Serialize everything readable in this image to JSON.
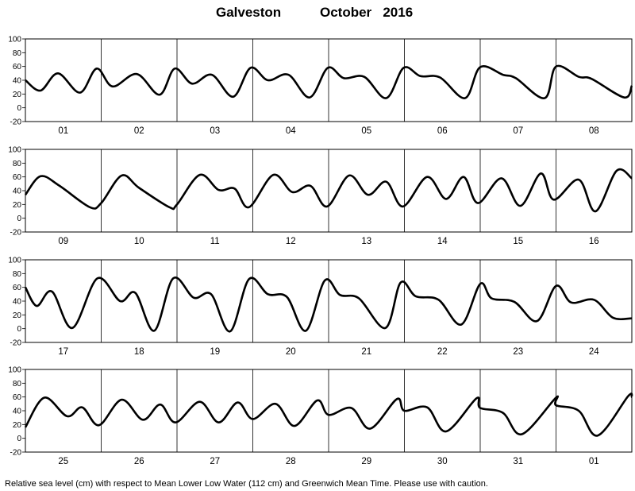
{
  "header": {
    "station": "Galveston",
    "month_year": "October   2016"
  },
  "footer": {
    "note": "Relative sea level (cm) with respect to Mean Lower Low Water (112 cm) and Greenwich Mean Time. Please use with caution."
  },
  "chart_data": {
    "type": "line",
    "title": "Galveston October 2016",
    "ylim": [
      -20,
      100
    ],
    "y_ticks": [
      -20,
      0,
      20,
      40,
      60,
      80,
      100
    ],
    "grid": "vertical day dividers only",
    "panels": [
      {
        "day_labels": [
          "01",
          "02",
          "03",
          "04",
          "05",
          "06",
          "07",
          "08"
        ],
        "series": [
          {
            "x": [
              0,
              0.2,
              0.43,
              0.72,
              0.94,
              1.15,
              1.47,
              1.77,
              1.97,
              2.2,
              2.46,
              2.74,
              2.97,
              3.2,
              3.47,
              3.75,
              3.99,
              4.2,
              4.47,
              4.76,
              4.99,
              5.21,
              5.47,
              5.8,
              6.0,
              6.3,
              6.47,
              6.85,
              7.0,
              7.3,
              7.47,
              7.9,
              8.0
            ],
            "y": [
              40,
              25,
              50,
              22,
              57,
              31,
              49,
              19,
              57,
              35,
              48,
              16,
              58,
              40,
              48,
              15,
              58,
              43,
              45,
              14,
              58,
              46,
              44,
              14,
              59,
              48,
              43,
              14,
              60,
              45,
              42,
              15,
              32
            ]
          }
        ]
      },
      {
        "day_labels": [
          "09",
          "10",
          "11",
          "12",
          "13",
          "14",
          "15",
          "16"
        ],
        "series": [
          {
            "x": [
              0,
              0.2,
              0.45,
              0.85,
              1.0,
              1.27,
              1.5,
              1.9,
              2.0,
              2.3,
              2.55,
              2.76,
              2.95,
              3.27,
              3.52,
              3.76,
              3.98,
              4.27,
              4.52,
              4.76,
              4.98,
              5.3,
              5.55,
              5.78,
              5.97,
              6.28,
              6.53,
              6.8,
              6.97,
              7.3,
              7.52,
              7.8,
              8.0
            ],
            "y": [
              34,
              61,
              47,
              16,
              22,
              62,
              44,
              16,
              20,
              63,
              41,
              43,
              16,
              63,
              38,
              47,
              17,
              62,
              34,
              53,
              17,
              60,
              28,
              60,
              22,
              58,
              18,
              65,
              27,
              56,
              10,
              69,
              58
            ]
          }
        ]
      },
      {
        "day_labels": [
          "17",
          "18",
          "19",
          "20",
          "21",
          "22",
          "23",
          "24"
        ],
        "series": [
          {
            "x": [
              0,
              0.15,
              0.35,
              0.62,
              0.95,
              1.25,
              1.45,
              1.7,
              1.95,
              2.22,
              2.45,
              2.7,
              2.95,
              3.2,
              3.45,
              3.7,
              3.95,
              4.15,
              4.4,
              4.75,
              4.95,
              5.15,
              5.45,
              5.75,
              6.0,
              6.15,
              6.45,
              6.75,
              7.0,
              7.2,
              7.5,
              7.75,
              8.0
            ],
            "y": [
              60,
              33,
              54,
              1,
              73,
              40,
              52,
              -3,
              73,
              45,
              50,
              -4,
              72,
              50,
              46,
              -3,
              70,
              49,
              44,
              1,
              67,
              47,
              42,
              6,
              65,
              44,
              39,
              11,
              62,
              38,
              42,
              16,
              15
            ]
          }
        ]
      },
      {
        "day_labels": [
          "25",
          "26",
          "27",
          "28",
          "29",
          "30",
          "31",
          "01"
        ],
        "series": [
          {
            "x": [
              0,
              0.25,
              0.55,
              0.75,
              0.97,
              1.27,
              1.55,
              1.78,
              1.98,
              2.3,
              2.55,
              2.8,
              3.0,
              3.3,
              3.55,
              3.85,
              4.0,
              4.3,
              4.55,
              4.9,
              5.0,
              5.3,
              5.55,
              5.95,
              6.0,
              6.3,
              6.55,
              7.0,
              7.0,
              7.3,
              7.55,
              7.95,
              8.0
            ],
            "y": [
              16,
              59,
              32,
              45,
              19,
              56,
              27,
              49,
              23,
              53,
              23,
              52,
              28,
              50,
              18,
              55,
              34,
              44,
              14,
              57,
              40,
              45,
              10,
              58,
              44,
              37,
              6,
              59,
              48,
              40,
              4,
              61,
              60
            ]
          }
        ]
      }
    ]
  }
}
